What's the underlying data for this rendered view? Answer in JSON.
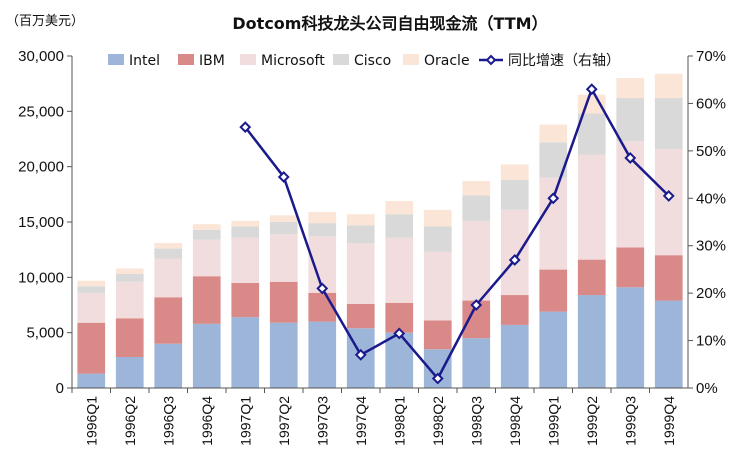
{
  "chart_data": {
    "type": "bar",
    "stacked": true,
    "title": "Dotcom科技龙头公司自由现金流（TTM）",
    "unit_label": "（百万美元）",
    "categories": [
      "1996Q1",
      "1996Q2",
      "1996Q3",
      "1996Q4",
      "1997Q1",
      "1997Q2",
      "1997Q3",
      "1997Q4",
      "1998Q1",
      "1998Q2",
      "1998Q3",
      "1998Q4",
      "1999Q1",
      "1999Q2",
      "1999Q3",
      "1999Q4"
    ],
    "series": [
      {
        "name": "Intel",
        "color": "#9db5d9",
        "values": [
          1300,
          2800,
          4000,
          5800,
          6400,
          5900,
          6000,
          5400,
          5000,
          3500,
          4500,
          5700,
          6900,
          8400,
          9100,
          7900
        ]
      },
      {
        "name": "IBM",
        "color": "#d98a88",
        "values": [
          4600,
          3500,
          4200,
          4300,
          3100,
          3700,
          2600,
          2200,
          2700,
          2600,
          3400,
          2700,
          3800,
          3200,
          3600,
          4100
        ]
      },
      {
        "name": "Microsoft",
        "color": "#f1dddd",
        "values": [
          2700,
          3300,
          3500,
          3300,
          4100,
          4300,
          5100,
          5500,
          5900,
          6200,
          7200,
          7700,
          8300,
          9500,
          9600,
          9600
        ]
      },
      {
        "name": "Cisco",
        "color": "#d9d9d9",
        "values": [
          600,
          700,
          900,
          900,
          1000,
          1100,
          1200,
          1600,
          2100,
          2300,
          2300,
          2700,
          3200,
          3700,
          3900,
          4600
        ]
      },
      {
        "name": "Oracle",
        "color": "#fbe5d6",
        "values": [
          500,
          500,
          500,
          500,
          500,
          600,
          1000,
          1000,
          1200,
          1500,
          1300,
          1400,
          1600,
          1700,
          1800,
          2200
        ]
      }
    ],
    "line_series": {
      "name": "同比增速（右轴）",
      "color": "#1a1a8c",
      "axis": "right",
      "values": [
        null,
        null,
        null,
        null,
        55.0,
        44.5,
        21.0,
        7.0,
        11.5,
        2.0,
        17.5,
        27.0,
        40.0,
        63.0,
        48.5,
        40.5
      ]
    },
    "y_left": {
      "min": 0,
      "max": 30000,
      "ticks": [
        "0",
        "5,000",
        "10,000",
        "15,000",
        "20,000",
        "25,000",
        "30,000"
      ]
    },
    "y_right": {
      "min": 0,
      "max": 70,
      "ticks": [
        "0%",
        "10%",
        "20%",
        "30%",
        "40%",
        "50%",
        "60%",
        "70%"
      ]
    },
    "legend_position": "top",
    "grid": false
  }
}
